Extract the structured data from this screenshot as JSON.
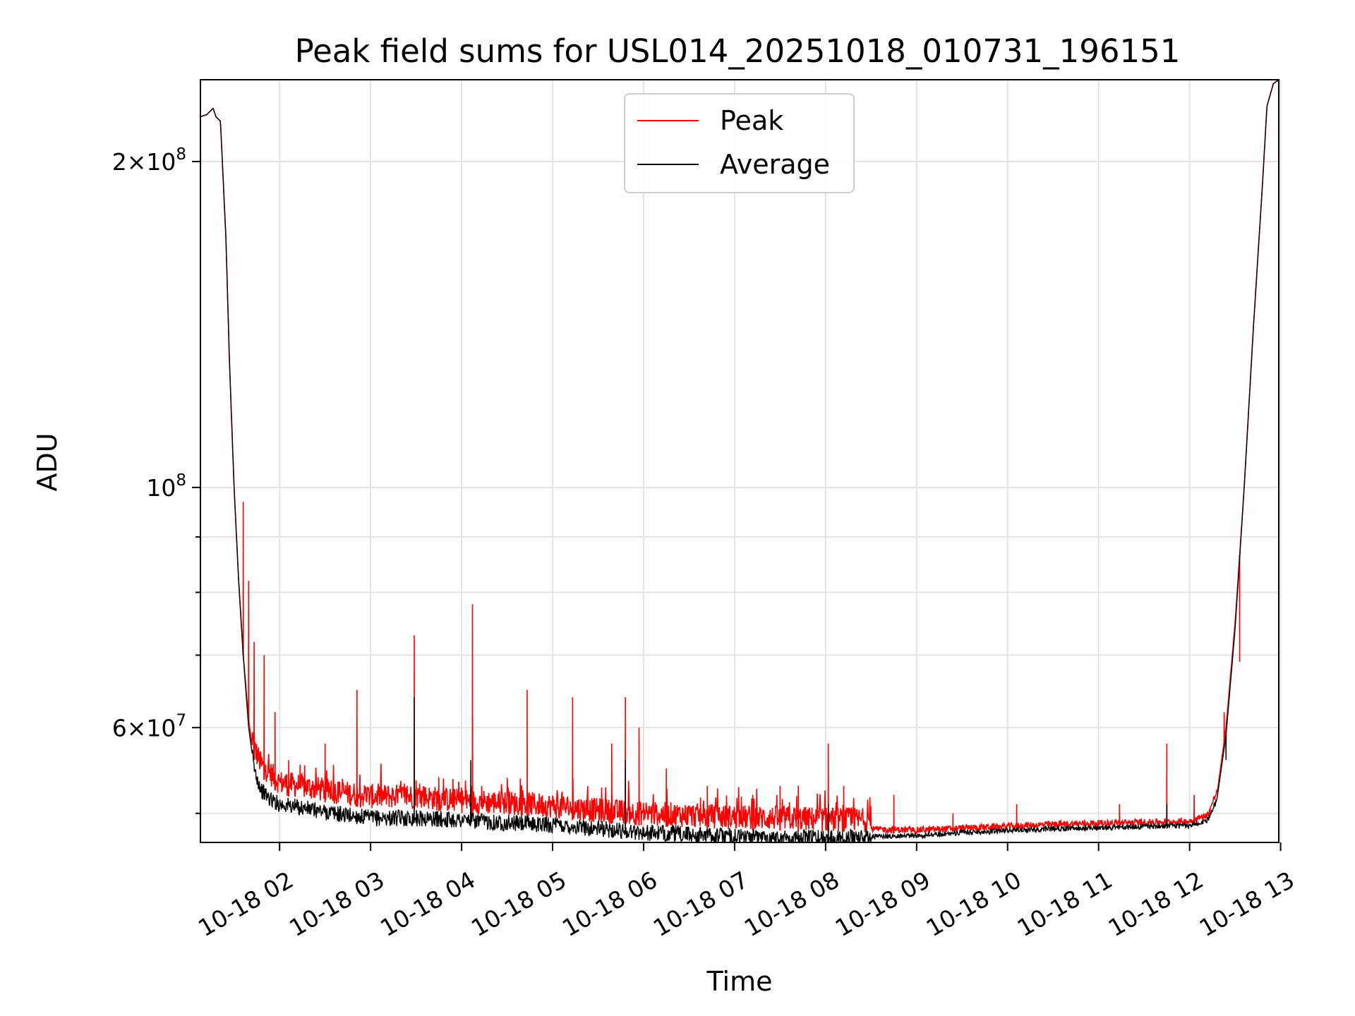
{
  "chart_data": {
    "type": "line",
    "title": "Peak field sums for USL014_20251018_010731_196151",
    "xlabel": "Time",
    "ylabel": "ADU",
    "yscale": "log",
    "ylim": [
      47000000,
      238000000
    ],
    "xlim_hours": [
      1.13,
      12.98
    ],
    "grid": true,
    "legend_position": "upper center",
    "x_tick_labels": [
      {
        "hour": 2,
        "label": "10-18 02"
      },
      {
        "hour": 3,
        "label": "10-18 03"
      },
      {
        "hour": 4,
        "label": "10-18 04"
      },
      {
        "hour": 5,
        "label": "10-18 05"
      },
      {
        "hour": 6,
        "label": "10-18 06"
      },
      {
        "hour": 7,
        "label": "10-18 07"
      },
      {
        "hour": 8,
        "label": "10-18 08"
      },
      {
        "hour": 9,
        "label": "10-18 09"
      },
      {
        "hour": 10,
        "label": "10-18 10"
      },
      {
        "hour": 11,
        "label": "10-18 11"
      },
      {
        "hour": 12,
        "label": "10-18 12"
      },
      {
        "hour": 13,
        "label": "10-18 13"
      }
    ],
    "y_major_ticks": [
      {
        "value": 60000000,
        "mant": "6",
        "exp": "7"
      },
      {
        "value": 100000000,
        "mant": "",
        "exp": "8"
      },
      {
        "value": 200000000,
        "mant": "2",
        "exp": "8"
      }
    ],
    "y_minor_ticks": [
      50000000,
      70000000,
      80000000,
      90000000
    ],
    "series": [
      {
        "name": "Peak",
        "color": "#ff0000",
        "points": [
          [
            1.13,
            220000000
          ],
          [
            1.2,
            221000000
          ],
          [
            1.27,
            224000000
          ],
          [
            1.3,
            220000000
          ],
          [
            1.35,
            218000000
          ],
          [
            1.41,
            170000000
          ],
          [
            1.45,
            130000000
          ],
          [
            1.5,
            100000000
          ],
          [
            1.55,
            82000000
          ],
          [
            1.6,
            70000000
          ],
          [
            1.66,
            61000000
          ],
          [
            1.72,
            56000000
          ],
          [
            1.8,
            54000000
          ],
          [
            1.9,
            53000000
          ],
          [
            2.0,
            52000000
          ],
          [
            2.3,
            51500000
          ],
          [
            2.6,
            51000000
          ],
          [
            3.0,
            50500000
          ],
          [
            3.5,
            50500000
          ],
          [
            4.0,
            50000000
          ],
          [
            4.5,
            49800000
          ],
          [
            5.0,
            49500000
          ],
          [
            5.5,
            49000000
          ],
          [
            6.0,
            48700000
          ],
          [
            6.5,
            48500000
          ],
          [
            7.0,
            48300000
          ],
          [
            7.5,
            48200000
          ],
          [
            8.0,
            48100000
          ],
          [
            8.5,
            48000000
          ],
          [
            9.0,
            47900000
          ],
          [
            9.5,
            48100000
          ],
          [
            10.0,
            48300000
          ],
          [
            10.5,
            48500000
          ],
          [
            11.0,
            48600000
          ],
          [
            11.5,
            48700000
          ],
          [
            12.0,
            48800000
          ],
          [
            12.2,
            49500000
          ],
          [
            12.3,
            52000000
          ],
          [
            12.4,
            60000000
          ],
          [
            12.5,
            75000000
          ],
          [
            12.6,
            100000000
          ],
          [
            12.7,
            140000000
          ],
          [
            12.8,
            190000000
          ],
          [
            12.85,
            225000000
          ],
          [
            12.92,
            236000000
          ],
          [
            12.98,
            238000000
          ]
        ],
        "spikes": [
          [
            1.6,
            97000000
          ],
          [
            1.66,
            82000000
          ],
          [
            1.72,
            72000000
          ],
          [
            1.83,
            70000000
          ],
          [
            1.95,
            62000000
          ],
          [
            2.1,
            56000000
          ],
          [
            2.5,
            58000000
          ],
          [
            2.85,
            65000000
          ],
          [
            3.48,
            73000000
          ],
          [
            3.75,
            54000000
          ],
          [
            4.12,
            78000000
          ],
          [
            4.72,
            65000000
          ],
          [
            5.22,
            64000000
          ],
          [
            5.65,
            58000000
          ],
          [
            5.8,
            64000000
          ],
          [
            5.95,
            60000000
          ],
          [
            6.25,
            55000000
          ],
          [
            6.7,
            53000000
          ],
          [
            7.2,
            52000000
          ],
          [
            7.5,
            53000000
          ],
          [
            7.7,
            53000000
          ],
          [
            8.03,
            58000000
          ],
          [
            8.2,
            53000000
          ],
          [
            8.75,
            52000000
          ],
          [
            9.4,
            50000000
          ],
          [
            10.1,
            51000000
          ],
          [
            11.23,
            51000000
          ],
          [
            11.75,
            58000000
          ],
          [
            12.05,
            52000000
          ],
          [
            12.38,
            62000000
          ],
          [
            12.55,
            69000000
          ]
        ]
      },
      {
        "name": "Average",
        "color": "#000000",
        "points": [
          [
            1.13,
            220000000
          ],
          [
            1.2,
            221000000
          ],
          [
            1.27,
            224000000
          ],
          [
            1.3,
            220000000
          ],
          [
            1.35,
            218000000
          ],
          [
            1.41,
            170000000
          ],
          [
            1.45,
            130000000
          ],
          [
            1.5,
            100000000
          ],
          [
            1.55,
            82000000
          ],
          [
            1.6,
            70000000
          ],
          [
            1.66,
            60000000
          ],
          [
            1.72,
            55000000
          ],
          [
            1.8,
            52500000
          ],
          [
            1.9,
            51500000
          ],
          [
            2.0,
            51000000
          ],
          [
            2.3,
            50500000
          ],
          [
            2.6,
            50000000
          ],
          [
            3.0,
            49500000
          ],
          [
            3.5,
            49500000
          ],
          [
            4.0,
            49300000
          ],
          [
            4.5,
            49000000
          ],
          [
            5.0,
            48800000
          ],
          [
            5.5,
            48400000
          ],
          [
            6.0,
            48000000
          ],
          [
            6.5,
            47800000
          ],
          [
            7.0,
            47600000
          ],
          [
            7.5,
            47500000
          ],
          [
            8.0,
            47500000
          ],
          [
            8.5,
            47600000
          ],
          [
            9.0,
            47700000
          ],
          [
            9.5,
            48000000
          ],
          [
            10.0,
            48200000
          ],
          [
            10.5,
            48400000
          ],
          [
            11.0,
            48500000
          ],
          [
            11.5,
            48600000
          ],
          [
            12.0,
            48700000
          ],
          [
            12.2,
            49300000
          ],
          [
            12.3,
            51500000
          ],
          [
            12.4,
            59000000
          ],
          [
            12.5,
            74000000
          ],
          [
            12.6,
            100000000
          ],
          [
            12.7,
            140000000
          ],
          [
            12.8,
            190000000
          ],
          [
            12.85,
            225000000
          ],
          [
            12.92,
            236000000
          ],
          [
            12.98,
            238000000
          ]
        ],
        "spikes": [
          [
            3.48,
            64000000
          ],
          [
            4.1,
            56000000
          ],
          [
            5.8,
            56000000
          ],
          [
            8.03,
            51000000
          ],
          [
            11.75,
            51000000
          ],
          [
            12.4,
            56000000
          ]
        ]
      }
    ]
  }
}
